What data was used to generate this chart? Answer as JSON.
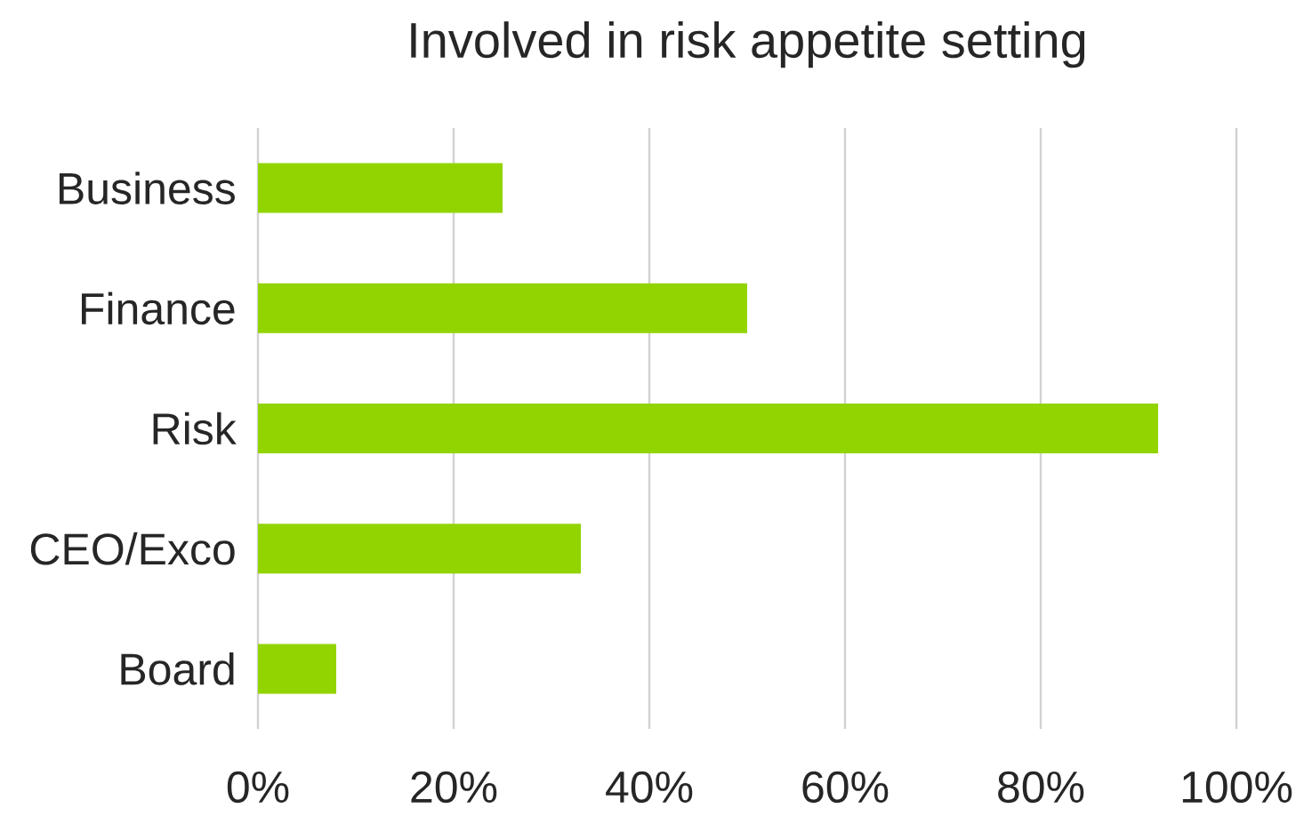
{
  "chart_data": {
    "type": "bar",
    "orientation": "horizontal",
    "title": "Involved in risk appetite setting",
    "categories": [
      "Business",
      "Finance",
      "Risk",
      "CEO/Exco",
      "Board"
    ],
    "values": [
      25,
      50,
      92,
      33,
      8
    ],
    "color": "#92d400",
    "xlim": [
      0,
      100
    ],
    "xticks": [
      {
        "value": 0,
        "label": "0%"
      },
      {
        "value": 20,
        "label": "20%"
      },
      {
        "value": 40,
        "label": "40%"
      },
      {
        "value": 60,
        "label": "60%"
      },
      {
        "value": 80,
        "label": "80%"
      },
      {
        "value": 100,
        "label": "100%"
      }
    ],
    "grid": "x"
  }
}
